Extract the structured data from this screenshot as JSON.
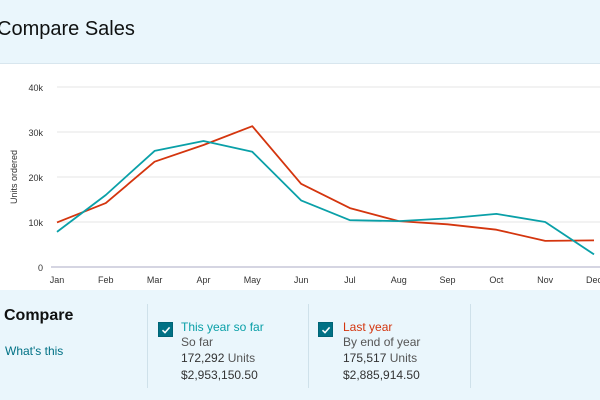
{
  "header": {
    "title": "Compare Sales"
  },
  "compare": {
    "title": "Compare",
    "link": "What's this",
    "this_year": {
      "label": "This year so far",
      "subtitle": "So far",
      "units_value": "172,292",
      "units_word": "Units",
      "amount": "$2,953,150.50",
      "checked": true,
      "color": "#0aa0a8"
    },
    "last_year": {
      "label": "Last year",
      "subtitle": "By end of year",
      "units_value": "175,517",
      "units_word": "Units",
      "amount": "$2,885,914.50",
      "checked": true,
      "color": "#d4350e"
    }
  },
  "chart_data": {
    "type": "line",
    "ylabel": "Units ordered",
    "xlabel": "",
    "categories": [
      "Jan",
      "Feb",
      "Mar",
      "Apr",
      "May",
      "Jun",
      "Jul",
      "Aug",
      "Sep",
      "Oct",
      "Nov",
      "Dec"
    ],
    "y_ticks": [
      "0",
      "10k",
      "20k",
      "30k",
      "40k"
    ],
    "ylim": [
      0,
      40000
    ],
    "grid": "horizontal",
    "series": [
      {
        "name": "This year so far",
        "color": "#0aa0a8",
        "values": [
          7800,
          16000,
          25800,
          28000,
          25600,
          14800,
          10400,
          10200,
          10800,
          11800,
          10000,
          2800
        ]
      },
      {
        "name": "Last year",
        "color": "#d4350e",
        "values": [
          9900,
          14200,
          23400,
          27100,
          31300,
          18500,
          13100,
          10200,
          9500,
          8300,
          5800,
          5900
        ]
      }
    ]
  }
}
